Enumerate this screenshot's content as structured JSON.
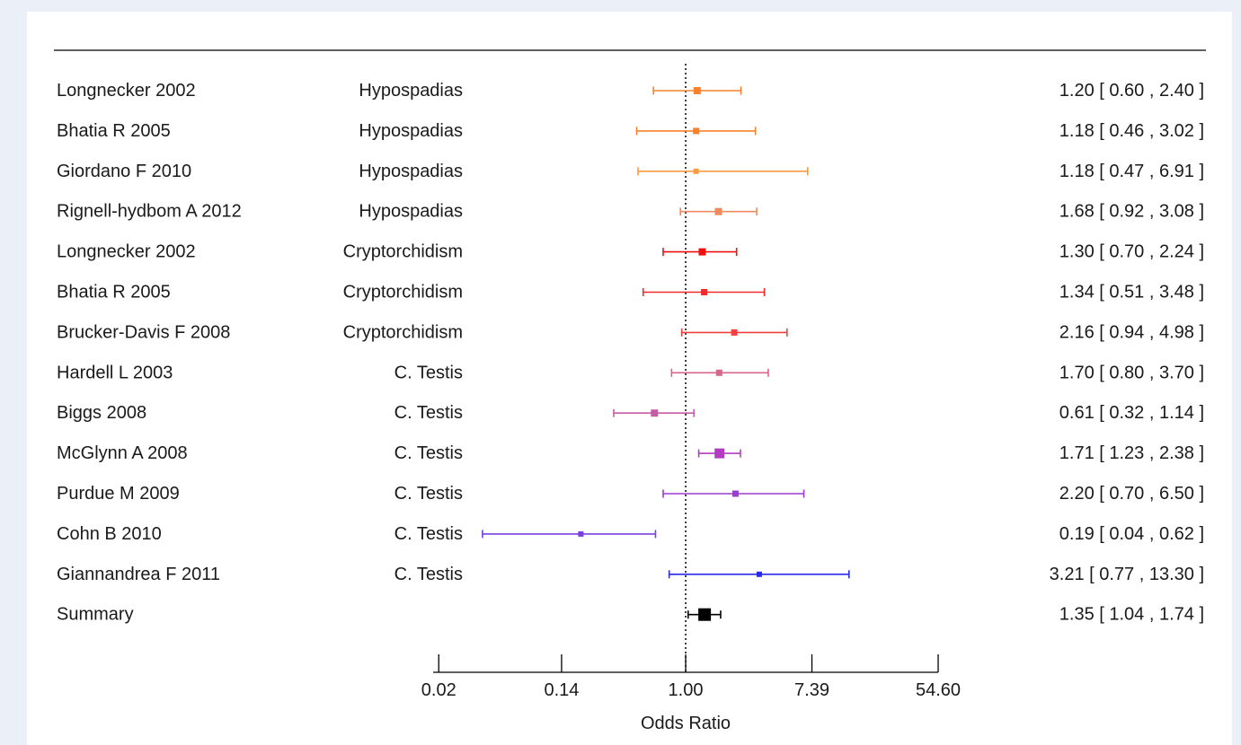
{
  "chart_data": {
    "type": "forest",
    "xlabel": "Odds Ratio",
    "x_scale": "log",
    "x_ticks": [
      "0.02",
      "0.14",
      "1.00",
      "7.39",
      "54.60"
    ],
    "x_tick_values": [
      0.02,
      0.14,
      1.0,
      7.39,
      54.6
    ],
    "xlim": [
      0.0183,
      54.6
    ],
    "reference_line": 1.0,
    "studies": [
      {
        "study": "Longnecker  2002",
        "outcome": "Hypospadias",
        "or": 1.2,
        "lo": 0.6,
        "hi": 2.4,
        "text": "1.20 [ 0.60 ,  2.40 ]",
        "color": "#f7822b",
        "weight": 0.3
      },
      {
        "study": "Bhatia R 2005",
        "outcome": "Hypospadias",
        "or": 1.18,
        "lo": 0.46,
        "hi": 3.02,
        "text": "1.18 [ 0.46 ,  3.02 ]",
        "color": "#f7822b",
        "weight": 0.2
      },
      {
        "study": "Giordano F 2010",
        "outcome": "Hypospadias",
        "or": 1.18,
        "lo": 0.47,
        "hi": 6.91,
        "text": "1.18 [ 0.47 ,  6.91 ]",
        "color": "#f79a42",
        "weight": 0.12
      },
      {
        "study": "Rignell-hydbom A  2012",
        "outcome": "Hypospadias",
        "or": 1.68,
        "lo": 0.92,
        "hi": 3.08,
        "text": "1.68 [ 0.92 ,  3.08 ]",
        "color": "#ee8a60",
        "weight": 0.35
      },
      {
        "study": "Longnecker  2002",
        "outcome": "Cryptorchidism",
        "or": 1.3,
        "lo": 0.7,
        "hi": 2.24,
        "text": "1.30 [ 0.70 ,  2.24 ]",
        "color": "#ee1111",
        "weight": 0.38
      },
      {
        "study": "Bhatia R 2005",
        "outcome": "Cryptorchidism",
        "or": 1.34,
        "lo": 0.51,
        "hi": 3.48,
        "text": "1.34 [ 0.51 ,  3.48 ]",
        "color": "#ee2a2a",
        "weight": 0.2
      },
      {
        "study": "Brucker-Davis F 2008",
        "outcome": "Cryptorchidism",
        "or": 2.16,
        "lo": 0.94,
        "hi": 4.98,
        "text": "2.16 [ 0.94 ,  4.98 ]",
        "color": "#f24040",
        "weight": 0.22
      },
      {
        "study": "Hardell L 2003",
        "outcome": "C. Testis",
        "or": 1.7,
        "lo": 0.8,
        "hi": 3.7,
        "text": "1.70 [ 0.80 ,  3.70 ]",
        "color": "#d9668a",
        "weight": 0.22
      },
      {
        "study": "Biggs 2008",
        "outcome": "C. Testis",
        "or": 0.61,
        "lo": 0.32,
        "hi": 1.14,
        "text": "0.61 [ 0.32 ,  1.14 ]",
        "color": "#c45ca6",
        "weight": 0.35
      },
      {
        "study": "McGlynn A 2008",
        "outcome": "C. Testis",
        "or": 1.71,
        "lo": 1.23,
        "hi": 2.38,
        "text": "1.71 [ 1.23 ,  2.38 ]",
        "color": "#b43cc2",
        "weight": 0.7
      },
      {
        "study": "Purdue M 2009",
        "outcome": "C. Testis",
        "or": 2.2,
        "lo": 0.7,
        "hi": 6.5,
        "text": "2.20 [ 0.70 ,  6.50 ]",
        "color": "#9c3ad6",
        "weight": 0.2
      },
      {
        "study": "Cohn B 2010",
        "outcome": "C. Testis",
        "or": 0.19,
        "lo": 0.04,
        "hi": 0.62,
        "text": "0.19 [ 0.04 ,  0.62 ]",
        "color": "#7a3ee6",
        "weight": 0.15
      },
      {
        "study": "Giannandrea F 2011",
        "outcome": "C. Testis",
        "or": 3.21,
        "lo": 0.77,
        "hi": 13.3,
        "text": "3.21 [ 0.77 , 13.30 ]",
        "color": "#2a2ae6",
        "weight": 0.15
      }
    ],
    "summary": {
      "study": "Summary",
      "or": 1.35,
      "lo": 1.04,
      "hi": 1.74,
      "text": "1.35 [ 1.04 ,  1.74 ]",
      "color": "#000000"
    }
  }
}
